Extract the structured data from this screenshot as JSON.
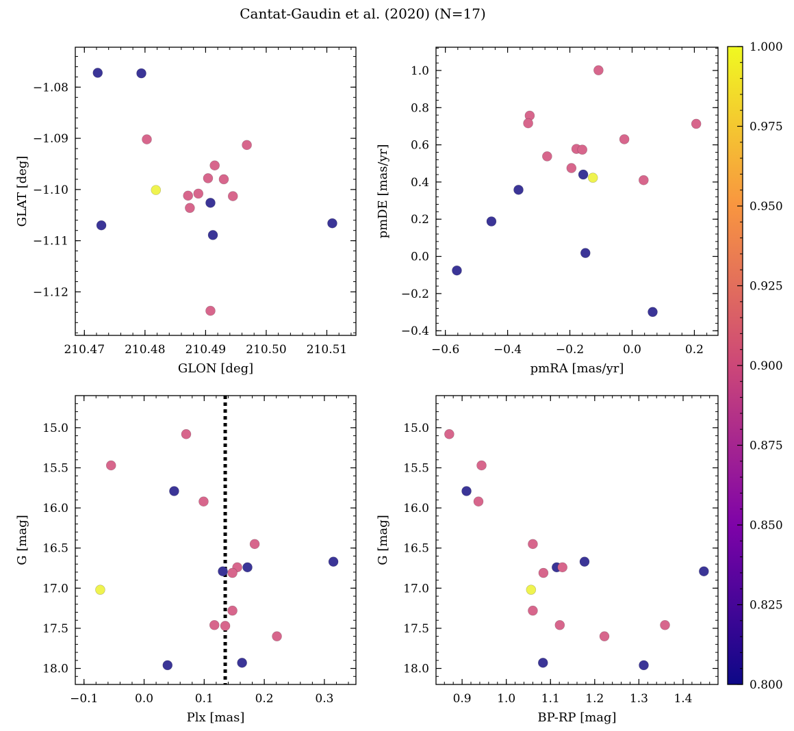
{
  "chart_data": [
    {
      "type": "scatter",
      "title": "Cantat-Gaudin et al. (2020) (N=17)",
      "xlabel": "GLON [deg]",
      "ylabel": "GLAT [deg]",
      "xlim": [
        210.4685,
        210.5148
      ],
      "ylim": [
        -1.1285,
        -1.0722
      ],
      "xticks": [
        210.47,
        210.48,
        210.49,
        210.5,
        210.51
      ],
      "xtick_labels": [
        "210.47",
        "210.48",
        "210.49",
        "210.50",
        "210.51"
      ],
      "yticks": [
        -1.08,
        -1.09,
        -1.1,
        -1.11,
        -1.12
      ],
      "ytick_labels": [
        "−1.08",
        "−1.09",
        "−1.10",
        "−1.11",
        "−1.12"
      ],
      "invert_y": false,
      "points": [
        {
          "x": 210.4722,
          "y": -1.0772,
          "c": 0.8
        },
        {
          "x": 210.4794,
          "y": -1.0773,
          "c": 0.8
        },
        {
          "x": 210.4728,
          "y": -1.107,
          "c": 0.8
        },
        {
          "x": 210.5109,
          "y": -1.1066,
          "c": 0.8
        },
        {
          "x": 210.4908,
          "y": -1.1026,
          "c": 0.8
        },
        {
          "x": 210.4912,
          "y": -1.1089,
          "c": 0.8
        },
        {
          "x": 210.4803,
          "y": -1.0902,
          "c": 0.9
        },
        {
          "x": 210.4968,
          "y": -1.0913,
          "c": 0.9
        },
        {
          "x": 210.4915,
          "y": -1.0953,
          "c": 0.9
        },
        {
          "x": 210.4904,
          "y": -1.0978,
          "c": 0.9
        },
        {
          "x": 210.493,
          "y": -1.098,
          "c": 0.9
        },
        {
          "x": 210.4888,
          "y": -1.1008,
          "c": 0.9
        },
        {
          "x": 210.4871,
          "y": -1.1012,
          "c": 0.9
        },
        {
          "x": 210.4945,
          "y": -1.1013,
          "c": 0.9
        },
        {
          "x": 210.4874,
          "y": -1.1036,
          "c": 0.9
        },
        {
          "x": 210.4908,
          "y": -1.1237,
          "c": 0.9
        },
        {
          "x": 210.4818,
          "y": -1.1001,
          "c": 1.0
        }
      ]
    },
    {
      "type": "scatter",
      "xlabel": "pmRA [mas/yr]",
      "ylabel": "pmDE [mas/yr]",
      "xlim": [
        -0.63,
        0.276
      ],
      "ylim": [
        -0.425,
        1.125
      ],
      "xticks": [
        -0.6,
        -0.4,
        -0.2,
        0.0,
        0.2
      ],
      "xtick_labels": [
        "−0.6",
        "−0.4",
        "−0.2",
        "0.0",
        "0.2"
      ],
      "yticks": [
        -0.4,
        -0.2,
        0.0,
        0.2,
        0.4,
        0.6,
        0.8,
        1.0
      ],
      "ytick_labels": [
        "−0.4",
        "−0.2",
        "0.0",
        "0.2",
        "0.4",
        "0.6",
        "0.8",
        "1.0"
      ],
      "invert_y": false,
      "points": [
        {
          "x": -0.563,
          "y": -0.076,
          "c": 0.8
        },
        {
          "x": -0.452,
          "y": 0.188,
          "c": 0.8
        },
        {
          "x": -0.365,
          "y": 0.358,
          "c": 0.8
        },
        {
          "x": -0.157,
          "y": 0.44,
          "c": 0.8
        },
        {
          "x": -0.15,
          "y": 0.018,
          "c": 0.8
        },
        {
          "x": 0.066,
          "y": -0.299,
          "c": 0.8
        },
        {
          "x": -0.108,
          "y": 1.001,
          "c": 0.9
        },
        {
          "x": -0.329,
          "y": 0.757,
          "c": 0.9
        },
        {
          "x": -0.334,
          "y": 0.716,
          "c": 0.9
        },
        {
          "x": 0.206,
          "y": 0.713,
          "c": 0.9
        },
        {
          "x": -0.025,
          "y": 0.63,
          "c": 0.9
        },
        {
          "x": -0.179,
          "y": 0.578,
          "c": 0.9
        },
        {
          "x": -0.16,
          "y": 0.574,
          "c": 0.9
        },
        {
          "x": -0.273,
          "y": 0.538,
          "c": 0.9
        },
        {
          "x": -0.195,
          "y": 0.475,
          "c": 0.9
        },
        {
          "x": 0.037,
          "y": 0.41,
          "c": 0.9
        },
        {
          "x": -0.126,
          "y": 0.423,
          "c": 1.0
        }
      ]
    },
    {
      "type": "scatter",
      "xlabel": "Plx [mas]",
      "ylabel": "G [mag]",
      "xlim": [
        -0.1145,
        0.3525
      ],
      "ylim": [
        14.6,
        18.2
      ],
      "xticks": [
        -0.1,
        0.0,
        0.1,
        0.2,
        0.3
      ],
      "xtick_labels": [
        "−0.1",
        "0.0",
        "0.1",
        "0.2",
        "0.3"
      ],
      "yticks": [
        15.0,
        15.5,
        16.0,
        16.5,
        17.0,
        17.5,
        18.0
      ],
      "ytick_labels": [
        "15.0",
        "15.5",
        "16.0",
        "16.5",
        "17.0",
        "17.5",
        "18.0"
      ],
      "invert_y": true,
      "vline": {
        "x": 0.135,
        "style": "dotted"
      },
      "points": [
        {
          "x": 0.05,
          "y": 15.79,
          "c": 0.8
        },
        {
          "x": 0.131,
          "y": 16.79,
          "c": 0.8
        },
        {
          "x": 0.172,
          "y": 16.74,
          "c": 0.8
        },
        {
          "x": 0.315,
          "y": 16.67,
          "c": 0.8
        },
        {
          "x": 0.039,
          "y": 17.96,
          "c": 0.8
        },
        {
          "x": 0.163,
          "y": 17.93,
          "c": 0.8
        },
        {
          "x": 0.07,
          "y": 15.08,
          "c": 0.9
        },
        {
          "x": -0.055,
          "y": 15.47,
          "c": 0.9
        },
        {
          "x": 0.099,
          "y": 15.92,
          "c": 0.9
        },
        {
          "x": 0.184,
          "y": 16.45,
          "c": 0.9
        },
        {
          "x": 0.155,
          "y": 16.74,
          "c": 0.9
        },
        {
          "x": 0.147,
          "y": 16.81,
          "c": 0.9
        },
        {
          "x": 0.147,
          "y": 17.28,
          "c": 0.9
        },
        {
          "x": 0.117,
          "y": 17.46,
          "c": 0.9
        },
        {
          "x": 0.135,
          "y": 17.47,
          "c": 0.9
        },
        {
          "x": 0.221,
          "y": 17.6,
          "c": 0.9
        },
        {
          "x": -0.073,
          "y": 17.02,
          "c": 1.0
        }
      ]
    },
    {
      "type": "scatter",
      "xlabel": "BP-RP [mag]",
      "ylabel": "G [mag]",
      "xlim": [
        0.841,
        1.479
      ],
      "ylim": [
        14.6,
        18.2
      ],
      "xticks": [
        0.9,
        1.0,
        1.1,
        1.2,
        1.3,
        1.4
      ],
      "xtick_labels": [
        "0.9",
        "1.0",
        "1.1",
        "1.2",
        "1.3",
        "1.4"
      ],
      "yticks": [
        15.0,
        15.5,
        16.0,
        16.5,
        17.0,
        17.5,
        18.0
      ],
      "ytick_labels": [
        "15.0",
        "15.5",
        "16.0",
        "16.5",
        "17.0",
        "17.5",
        "18.0"
      ],
      "invert_y": true,
      "points": [
        {
          "x": 0.91,
          "y": 15.79,
          "c": 0.8
        },
        {
          "x": 1.114,
          "y": 16.74,
          "c": 0.8
        },
        {
          "x": 1.177,
          "y": 16.67,
          "c": 0.8
        },
        {
          "x": 1.447,
          "y": 16.79,
          "c": 0.8
        },
        {
          "x": 1.083,
          "y": 17.93,
          "c": 0.8
        },
        {
          "x": 1.311,
          "y": 17.96,
          "c": 0.8
        },
        {
          "x": 0.871,
          "y": 15.08,
          "c": 0.9
        },
        {
          "x": 0.944,
          "y": 15.47,
          "c": 0.9
        },
        {
          "x": 0.937,
          "y": 15.92,
          "c": 0.9
        },
        {
          "x": 1.06,
          "y": 16.45,
          "c": 0.9
        },
        {
          "x": 1.127,
          "y": 16.74,
          "c": 0.9
        },
        {
          "x": 1.084,
          "y": 16.81,
          "c": 0.9
        },
        {
          "x": 1.06,
          "y": 17.28,
          "c": 0.9
        },
        {
          "x": 1.121,
          "y": 17.46,
          "c": 0.9
        },
        {
          "x": 1.359,
          "y": 17.46,
          "c": 0.9
        },
        {
          "x": 1.222,
          "y": 17.6,
          "c": 0.9
        },
        {
          "x": 1.056,
          "y": 17.02,
          "c": 1.0
        }
      ]
    }
  ],
  "colorbar": {
    "min": 0.8,
    "max": 1.0,
    "ticks": [
      0.8,
      0.825,
      0.85,
      0.875,
      0.9,
      0.925,
      0.95,
      0.975,
      1.0
    ],
    "tick_labels": [
      "0.800",
      "0.825",
      "0.850",
      "0.875",
      "0.900",
      "0.925",
      "0.950",
      "0.975",
      "1.000"
    ],
    "colormap": "plasma",
    "stops": [
      {
        "v": 0.0,
        "color": "#0d0887"
      },
      {
        "v": 0.25,
        "color": "#7e03a8"
      },
      {
        "v": 0.5,
        "color": "#cc4778"
      },
      {
        "v": 0.75,
        "color": "#f89540"
      },
      {
        "v": 1.0,
        "color": "#f0f921"
      }
    ]
  },
  "colors": {
    "c_0_80": "#3b3597",
    "c_0_90": "#d7668c",
    "c_1_00": "#eff34f"
  }
}
